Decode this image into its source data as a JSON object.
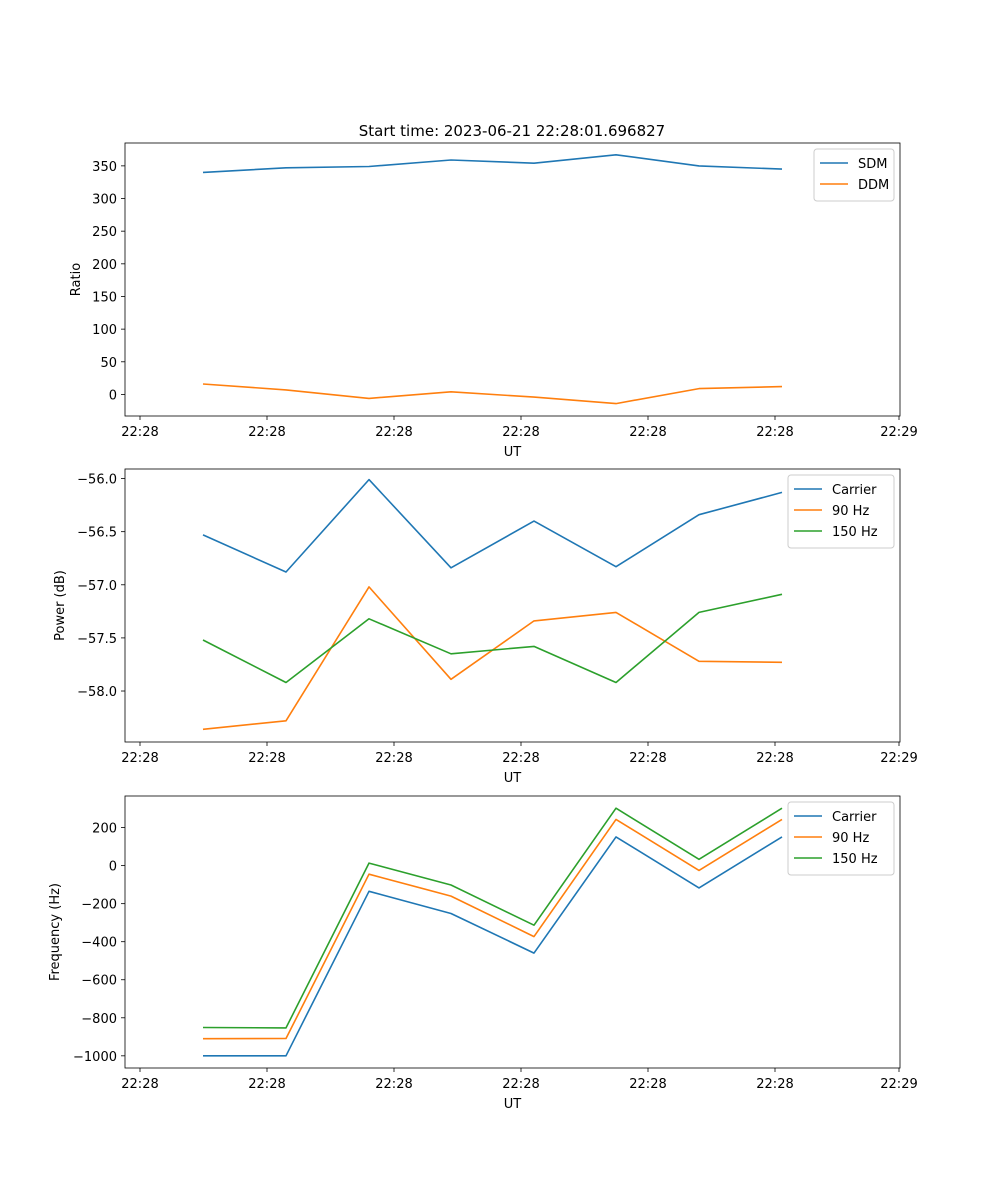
{
  "title": "Start time: 2023-06-21 22:28:01.696827",
  "colors": {
    "blue": "#1f77b4",
    "orange": "#ff7f0e",
    "green": "#2ca02c"
  },
  "chart_data": [
    {
      "type": "line",
      "title": "Start time: 2023-06-21 22:28:01.696827",
      "xlabel": "UT",
      "ylabel": "Ratio",
      "xticks": [
        "22:28",
        "22:28",
        "22:28",
        "22:28",
        "22:28",
        "22:28",
        "22:29"
      ],
      "yticks": [
        "0",
        "50",
        "100",
        "150",
        "200",
        "250",
        "300",
        "350"
      ],
      "ylim": [
        -33,
        385
      ],
      "legend": "top-right",
      "grid": false,
      "series": [
        {
          "name": "SDM",
          "color": "#1f77b4",
          "values": [
            340,
            347,
            349,
            359,
            354,
            367,
            350,
            345
          ]
        },
        {
          "name": "DDM",
          "color": "#ff7f0e",
          "values": [
            16,
            7,
            -6,
            4,
            -4,
            -14,
            9,
            12
          ]
        }
      ]
    },
    {
      "type": "line",
      "xlabel": "UT",
      "ylabel": "Power (dB)",
      "xticks": [
        "22:28",
        "22:28",
        "22:28",
        "22:28",
        "22:28",
        "22:28",
        "22:29"
      ],
      "yticks": [
        "−58.0",
        "−57.5",
        "−57.0",
        "−56.5",
        "−56.0"
      ],
      "ylim": [
        -58.48,
        -55.91
      ],
      "legend": "top-right",
      "grid": false,
      "series": [
        {
          "name": "Carrier",
          "color": "#1f77b4",
          "values": [
            -56.53,
            -56.88,
            -56.01,
            -56.84,
            -56.4,
            -56.83,
            -56.34,
            -56.13
          ]
        },
        {
          "name": "90 Hz",
          "color": "#ff7f0e",
          "values": [
            -58.36,
            -58.28,
            -57.02,
            -57.89,
            -57.34,
            -57.26,
            -57.72,
            -57.73
          ]
        },
        {
          "name": "150 Hz",
          "color": "#2ca02c",
          "values": [
            -57.52,
            -57.92,
            -57.32,
            -57.65,
            -57.58,
            -57.92,
            -57.26,
            -57.09
          ]
        }
      ]
    },
    {
      "type": "line",
      "xlabel": "UT",
      "ylabel": "Frequency (Hz)",
      "xticks": [
        "22:28",
        "22:28",
        "22:28",
        "22:28",
        "22:28",
        "22:28",
        "22:29"
      ],
      "yticks": [
        "−1000",
        "−800",
        "−600",
        "−400",
        "−200",
        "0",
        "200"
      ],
      "ylim": [
        -1064,
        366
      ],
      "legend": "top-right",
      "grid": false,
      "series": [
        {
          "name": "Carrier",
          "color": "#1f77b4",
          "values": [
            -1000,
            -1000,
            -135,
            -252,
            -460,
            151,
            -117,
            151
          ]
        },
        {
          "name": "90 Hz",
          "color": "#ff7f0e",
          "values": [
            -910,
            -909,
            -45,
            -160,
            -373,
            243,
            -25,
            243
          ]
        },
        {
          "name": "150 Hz",
          "color": "#2ca02c",
          "values": [
            -851,
            -853,
            13,
            -102,
            -313,
            302,
            33,
            302
          ]
        }
      ]
    }
  ]
}
